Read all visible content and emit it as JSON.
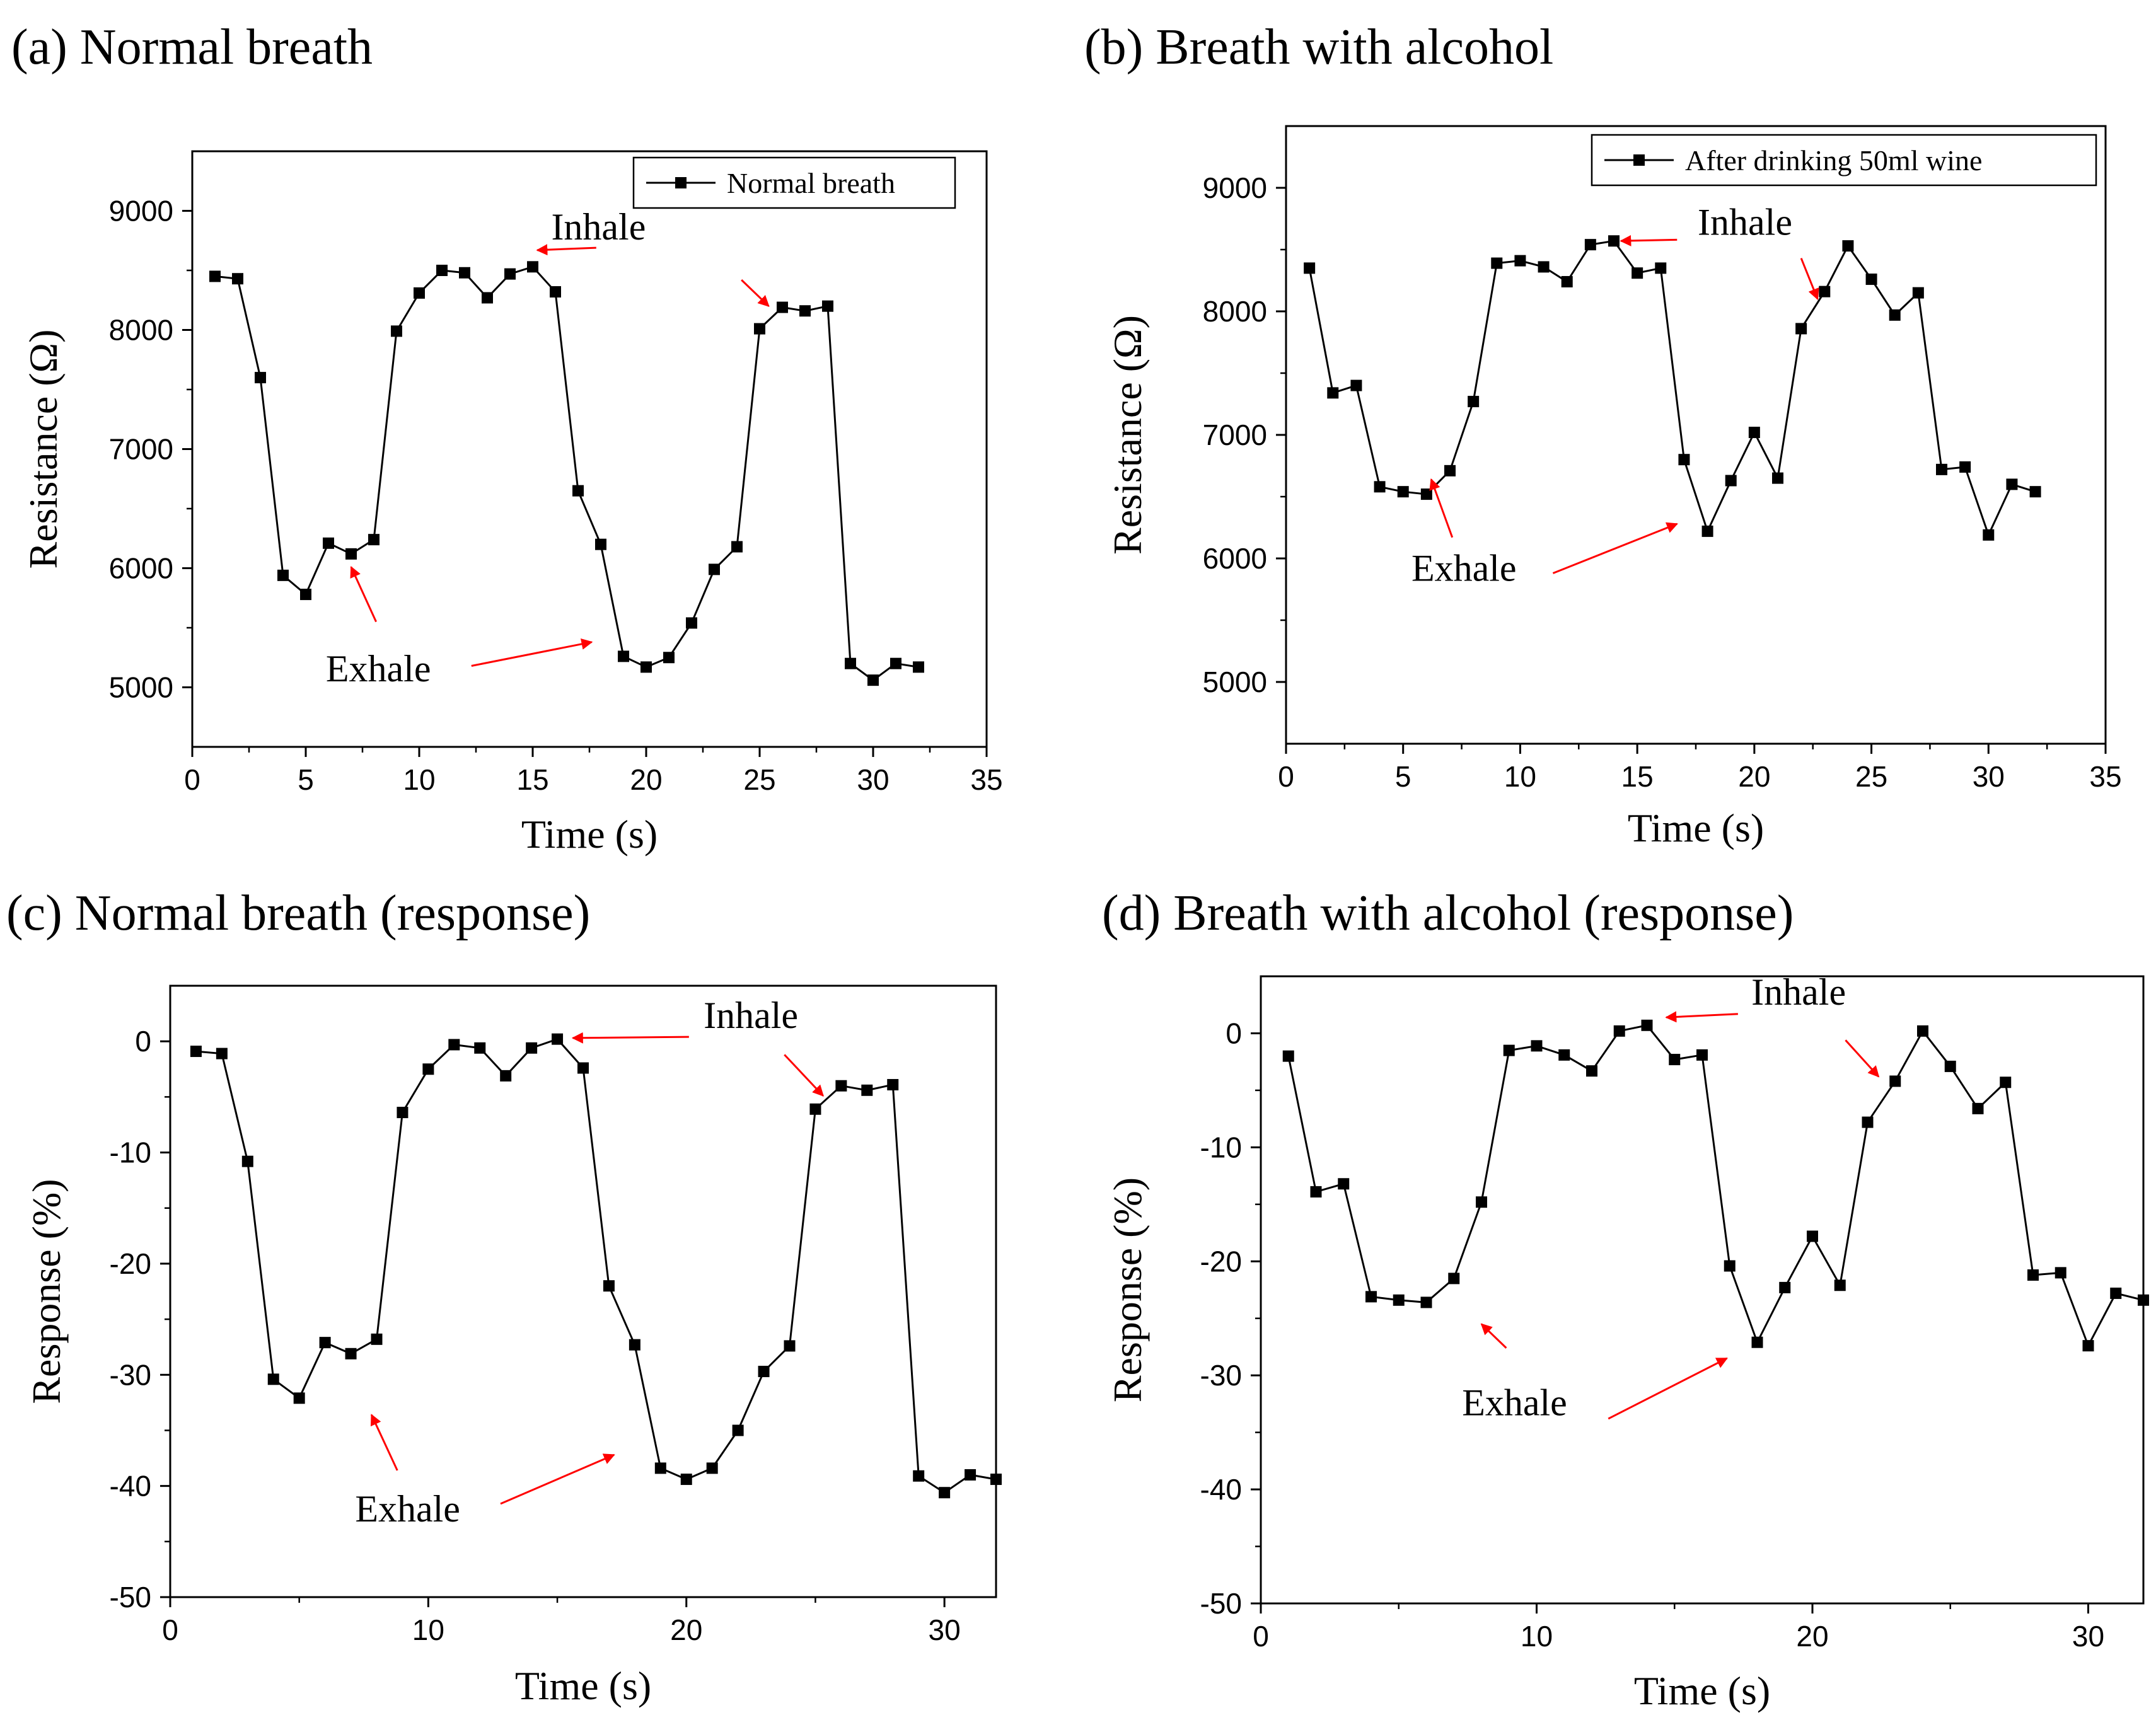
{
  "chart_data": [
    {
      "id": "a",
      "type": "line",
      "title": "(a) Normal breath",
      "xlabel": "Time (s)",
      "ylabel": "Resistance (Ω)",
      "xlim": [
        0,
        35
      ],
      "ylim": [
        4500,
        9500
      ],
      "xticks": [
        0,
        5,
        10,
        15,
        20,
        25,
        30,
        35
      ],
      "yticks": [
        5000,
        6000,
        7000,
        8000,
        9000
      ],
      "legend": {
        "label": "Normal breath",
        "position": "top-right"
      },
      "series": [
        {
          "name": "Normal breath",
          "x": [
            1,
            2,
            3,
            4,
            5,
            6,
            7,
            8,
            9,
            10,
            11,
            12,
            13,
            14,
            15,
            16,
            17,
            18,
            19,
            20,
            21,
            22,
            23,
            24,
            25,
            26,
            27,
            28,
            29,
            30,
            31,
            32
          ],
          "y": [
            8450,
            8430,
            7600,
            5940,
            5780,
            6210,
            6120,
            6240,
            7990,
            8310,
            8500,
            8480,
            8270,
            8470,
            8530,
            8320,
            6650,
            6200,
            5260,
            5170,
            5250,
            5540,
            5990,
            6180,
            8010,
            8190,
            8160,
            8200,
            5200,
            5060,
            5200,
            5170
          ]
        }
      ],
      "annotations": [
        {
          "text": "Inhale",
          "tx": 17.9,
          "ty": 8760,
          "arrows": [
            {
              "from": [
                17.8,
                8690
              ],
              "to": [
                15.2,
                8670
              ]
            },
            {
              "from": [
                24.2,
                8420
              ],
              "to": [
                25.4,
                8200
              ]
            }
          ]
        },
        {
          "text": "Exhale",
          "tx": 8.2,
          "ty": 5050,
          "arrows": [
            {
              "from": [
                8.1,
                5550
              ],
              "to": [
                7.0,
                6010
              ]
            },
            {
              "from": [
                12.3,
                5180
              ],
              "to": [
                17.6,
                5380
              ]
            }
          ]
        }
      ]
    },
    {
      "id": "b",
      "type": "line",
      "title": "(b) Breath with alcohol",
      "xlabel": "Time (s)",
      "ylabel": "Resistance (Ω)",
      "xlim": [
        0,
        35
      ],
      "ylim": [
        4500,
        9500
      ],
      "xticks": [
        0,
        5,
        10,
        15,
        20,
        25,
        30,
        35
      ],
      "yticks": [
        5000,
        6000,
        7000,
        8000,
        9000
      ],
      "legend": {
        "label": "After drinking 50ml wine",
        "position": "top-right"
      },
      "series": [
        {
          "name": "After drinking 50ml wine",
          "x": [
            1,
            2,
            3,
            4,
            5,
            6,
            7,
            8,
            9,
            10,
            11,
            12,
            13,
            14,
            15,
            16,
            17,
            18,
            19,
            20,
            21,
            22,
            23,
            24,
            25,
            26,
            27,
            28,
            29,
            30,
            31,
            32
          ],
          "y": [
            8350,
            7340,
            7400,
            6580,
            6540,
            6520,
            6710,
            7270,
            8390,
            8410,
            8360,
            8240,
            8540,
            8570,
            8310,
            8350,
            6800,
            6220,
            6630,
            7020,
            6650,
            7860,
            8160,
            8530,
            8260,
            7970,
            8150,
            6720,
            6740,
            6190,
            6600,
            6540
          ]
        }
      ],
      "annotations": [
        {
          "text": "Inhale",
          "tx": 19.6,
          "ty": 8620,
          "arrows": [
            {
              "from": [
                16.7,
                8580
              ],
              "to": [
                14.3,
                8570
              ]
            },
            {
              "from": [
                22.0,
                8430
              ],
              "to": [
                22.7,
                8100
              ]
            }
          ]
        },
        {
          "text": "Exhale",
          "tx": 7.6,
          "ty": 5820,
          "arrows": [
            {
              "from": [
                7.1,
                6170
              ],
              "to": [
                6.2,
                6640
              ]
            },
            {
              "from": [
                11.4,
                5880
              ],
              "to": [
                16.7,
                6280
              ]
            }
          ]
        }
      ]
    },
    {
      "id": "c",
      "type": "line",
      "title": "(c) Normal breath (response)",
      "xlabel": "Time (s)",
      "ylabel": "Response (%)",
      "xlim": [
        0,
        32
      ],
      "ylim": [
        -50,
        5
      ],
      "xticks": [
        0,
        10,
        20,
        30
      ],
      "yticks": [
        -50,
        -40,
        -30,
        -20,
        -10,
        0
      ],
      "legend": null,
      "series": [
        {
          "name": "Response",
          "x": [
            1,
            2,
            3,
            4,
            5,
            6,
            7,
            8,
            9,
            10,
            11,
            12,
            13,
            14,
            15,
            16,
            17,
            18,
            19,
            20,
            21,
            22,
            23,
            24,
            25,
            26,
            27,
            28,
            29,
            30,
            31,
            32
          ],
          "y": [
            -0.9,
            -1.1,
            -10.8,
            -30.4,
            -32.1,
            -27.1,
            -28.1,
            -26.8,
            -6.4,
            -2.5,
            -0.3,
            -0.6,
            -3.1,
            -0.6,
            0.2,
            -2.4,
            -22,
            -27.3,
            -38.4,
            -39.4,
            -38.4,
            -35,
            -29.7,
            -27.4,
            -6.1,
            -4,
            -4.4,
            -3.9,
            -39.1,
            -40.6,
            -39,
            -39.4
          ]
        }
      ],
      "annotations": [
        {
          "text": "Inhale",
          "tx": 22.5,
          "ty": 1.2,
          "arrows": [
            {
              "from": [
                20.1,
                0.4
              ],
              "to": [
                15.6,
                0.3
              ]
            },
            {
              "from": [
                23.8,
                -1.2
              ],
              "to": [
                25.3,
                -4.9
              ]
            }
          ]
        },
        {
          "text": "Exhale",
          "tx": 9.2,
          "ty": -43.2,
          "arrows": [
            {
              "from": [
                8.8,
                -38.6
              ],
              "to": [
                7.8,
                -33.6
              ]
            },
            {
              "from": [
                12.8,
                -41.6
              ],
              "to": [
                17.2,
                -37.2
              ]
            }
          ]
        }
      ]
    },
    {
      "id": "d",
      "type": "line",
      "title": "(d) Breath with alcohol (response)",
      "xlabel": "Time (s)",
      "ylabel": "Response (%)",
      "xlim": [
        0,
        32
      ],
      "ylim": [
        -50,
        5
      ],
      "xticks": [
        0,
        10,
        20,
        30
      ],
      "yticks": [
        -50,
        -40,
        -30,
        -20,
        -10,
        0
      ],
      "legend": null,
      "series": [
        {
          "name": "Response",
          "x": [
            1,
            2,
            3,
            4,
            5,
            6,
            7,
            8,
            9,
            10,
            11,
            12,
            13,
            14,
            15,
            16,
            17,
            18,
            19,
            20,
            21,
            22,
            23,
            24,
            25,
            26,
            27,
            28,
            29,
            30,
            31,
            32
          ],
          "y": [
            -2,
            -13.9,
            -13.2,
            -23.1,
            -23.4,
            -23.6,
            -21.5,
            -14.8,
            -1.5,
            -1.1,
            -1.9,
            -3.3,
            0.2,
            0.7,
            -2.3,
            -1.9,
            -20.4,
            -27.1,
            -22.3,
            -17.8,
            -22.1,
            -7.8,
            -4.2,
            0.2,
            -2.9,
            -6.6,
            -4.3,
            -21.2,
            -21,
            -27.4,
            -22.8,
            -23.4
          ]
        }
      ],
      "annotations": [
        {
          "text": "Inhale",
          "tx": 19.5,
          "ty": 2.5,
          "arrows": [
            {
              "from": [
                17.3,
                1.7
              ],
              "to": [
                14.7,
                1.4
              ]
            },
            {
              "from": [
                21.2,
                -0.6
              ],
              "to": [
                22.4,
                -3.8
              ]
            }
          ]
        },
        {
          "text": "Exhale",
          "tx": 9.2,
          "ty": -33.5,
          "arrows": [
            {
              "from": [
                8.9,
                -27.6
              ],
              "to": [
                8.0,
                -25.5
              ]
            },
            {
              "from": [
                12.6,
                -33.8
              ],
              "to": [
                16.9,
                -28.5
              ]
            }
          ]
        }
      ]
    }
  ]
}
